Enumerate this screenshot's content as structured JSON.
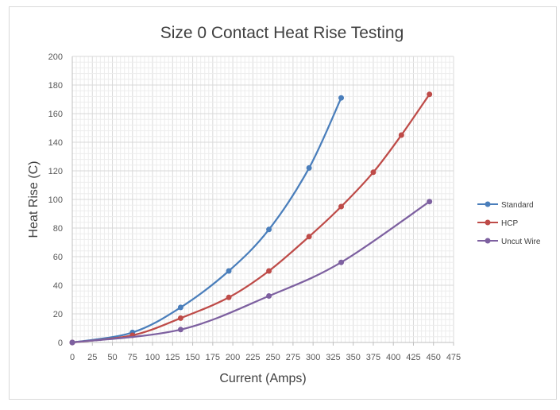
{
  "chart_data": {
    "type": "scatter",
    "title": "Size 0 Contact Heat Rise Testing",
    "xlabel": "Current (Amps)",
    "ylabel": "Heat Rise (C)",
    "xlim": [
      0,
      475
    ],
    "ylim": [
      0,
      200
    ],
    "x_ticks": [
      0,
      25,
      50,
      75,
      100,
      125,
      150,
      175,
      200,
      225,
      250,
      275,
      300,
      325,
      350,
      375,
      400,
      425,
      450,
      475
    ],
    "y_ticks": [
      0,
      20,
      40,
      60,
      80,
      100,
      120,
      140,
      160,
      180,
      200
    ],
    "grid": true,
    "legend_position": "right",
    "series": [
      {
        "name": "Standard",
        "color": "#4a7ebb",
        "points": [
          [
            0,
            0
          ],
          [
            75,
            7
          ],
          [
            135,
            24.5
          ],
          [
            195,
            50
          ],
          [
            245,
            79
          ],
          [
            295,
            122
          ],
          [
            335,
            171
          ]
        ]
      },
      {
        "name": "HCP",
        "color": "#be4b48",
        "points": [
          [
            0,
            0
          ],
          [
            75,
            5
          ],
          [
            135,
            17
          ],
          [
            195,
            31.5
          ],
          [
            245,
            50
          ],
          [
            295,
            74
          ],
          [
            335,
            95
          ],
          [
            375,
            119
          ],
          [
            410,
            145
          ],
          [
            445,
            173.5
          ]
        ]
      },
      {
        "name": "Uncut Wire",
        "color": "#7d60a0",
        "points": [
          [
            0,
            0
          ],
          [
            135,
            9
          ],
          [
            245,
            32.5
          ],
          [
            335,
            56
          ],
          [
            445,
            98.5
          ]
        ]
      }
    ]
  }
}
